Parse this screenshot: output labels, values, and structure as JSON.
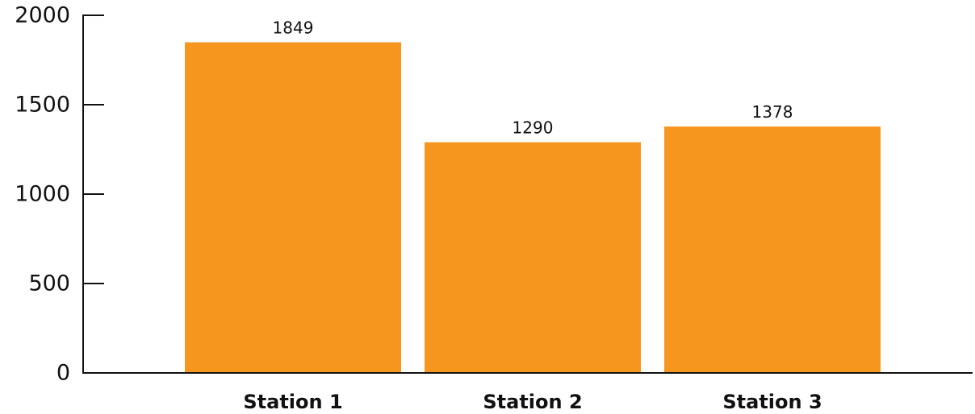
{
  "chart_data": {
    "type": "bar",
    "categories": [
      "Station 1",
      "Station 2",
      "Station 3"
    ],
    "values": [
      1849,
      1290,
      1378
    ],
    "data_labels": [
      "1849",
      "1290",
      "1378"
    ],
    "y_ticks": [
      0,
      500,
      1000,
      1500,
      2000
    ],
    "y_tick_labels": [
      "0",
      "500",
      "1000",
      "1500",
      "2000"
    ],
    "ylim": [
      0,
      2000
    ],
    "title": "",
    "xlabel": "",
    "ylabel": "",
    "grid": false,
    "legend": "none",
    "bar_color": "#F7961E",
    "axis_color": "#111111"
  }
}
